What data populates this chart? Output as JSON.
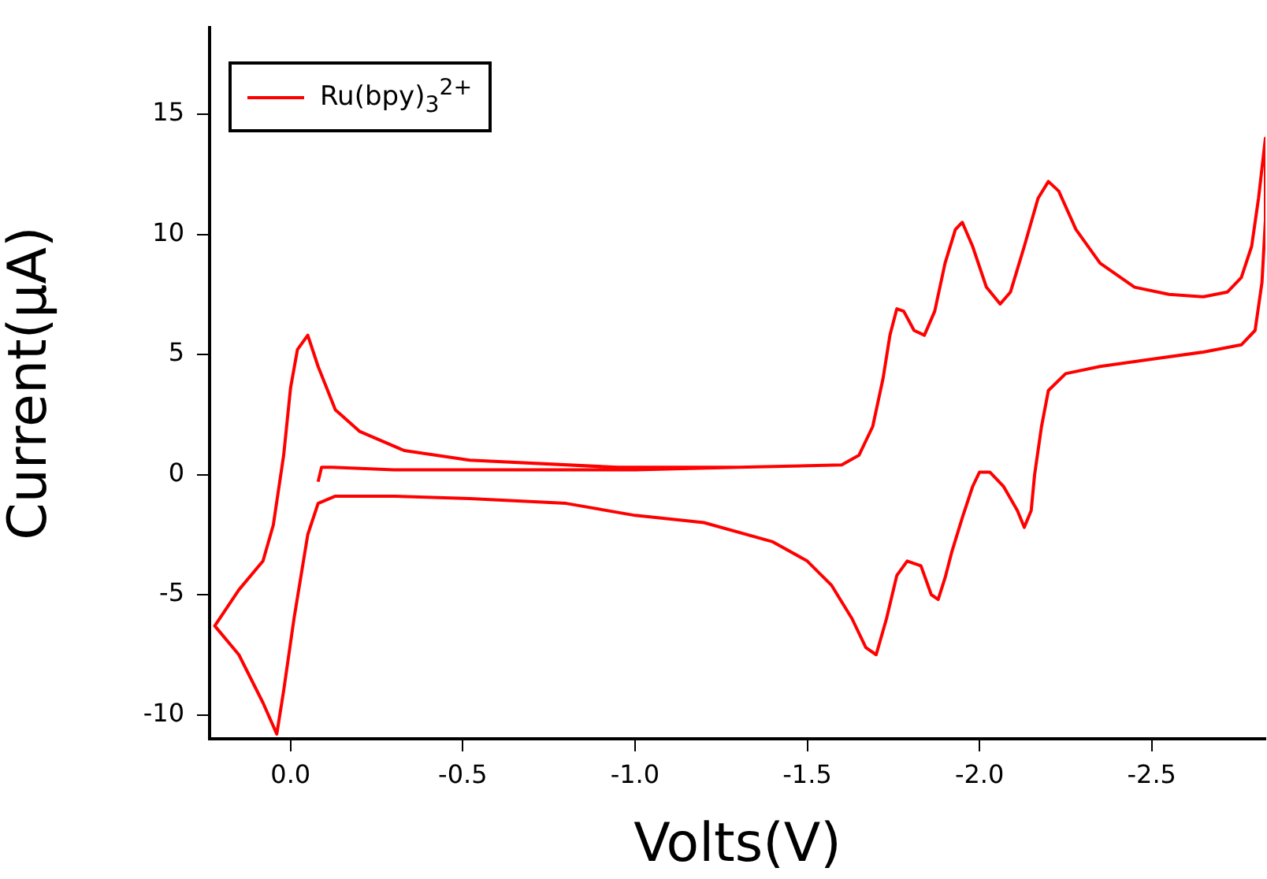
{
  "chart_data": {
    "type": "line",
    "xlabel": "Volts(V)",
    "ylabel": "Current(µA)",
    "legend": "top left",
    "grid": false,
    "marker": "none",
    "line_style": "solid",
    "xlim": [
      0.235,
      -2.83
    ],
    "ylim": [
      -11.0,
      18.6
    ],
    "xticks": [
      {
        "value": 0,
        "label": "0.0"
      },
      {
        "value": -0.5,
        "label": "-0.5"
      },
      {
        "value": -1,
        "label": "-1.0"
      },
      {
        "value": -1.5,
        "label": "-1.5"
      },
      {
        "value": -2,
        "label": "-2.0"
      },
      {
        "value": -2.5,
        "label": "-2.5"
      }
    ],
    "yticks": [
      -10,
      -5,
      0,
      5,
      10,
      15
    ],
    "series": [
      {
        "name": "Ru(bpy)$_{3}$$^{2+}$",
        "color": "#ff0000",
        "x": [
          -0.08,
          -0.09,
          -0.12,
          -0.3,
          -0.6,
          -1.0,
          -1.3,
          -1.6,
          -1.65,
          -1.69,
          -1.72,
          -1.74,
          -1.76,
          -1.78,
          -1.81,
          -1.84,
          -1.87,
          -1.9,
          -1.93,
          -1.95,
          -1.98,
          -2.02,
          -2.06,
          -2.09,
          -2.13,
          -2.17,
          -2.2,
          -2.23,
          -2.28,
          -2.35,
          -2.45,
          -2.55,
          -2.65,
          -2.72,
          -2.76,
          -2.79,
          -2.81,
          -2.83,
          -2.83,
          -2.82,
          -2.8,
          -2.76,
          -2.65,
          -2.5,
          -2.35,
          -2.25,
          -2.2,
          -2.18,
          -2.16,
          -2.15,
          -2.13,
          -2.11,
          -2.07,
          -2.03,
          -2.0,
          -1.98,
          -1.95,
          -1.92,
          -1.9,
          -1.88,
          -1.86,
          -1.83,
          -1.79,
          -1.76,
          -1.73,
          -1.7,
          -1.67,
          -1.63,
          -1.57,
          -1.5,
          -1.4,
          -1.2,
          -1.0,
          -0.8,
          -0.52,
          -0.3,
          -0.13,
          -0.08,
          -0.05,
          -0.01,
          0.02,
          0.04,
          0.08,
          0.15,
          0.22,
          0.15,
          0.08,
          0.05,
          0.02,
          0,
          -0.02,
          -0.05,
          -0.08,
          -0.13,
          -0.2,
          -0.33,
          -0.52,
          -0.95,
          -1.3,
          -1.6
        ],
        "values": [
          -0.3,
          0.3,
          0.3,
          0.2,
          0.2,
          0.2,
          0.3,
          0.4,
          0.8,
          2.0,
          4.0,
          5.8,
          6.9,
          6.8,
          6.0,
          5.8,
          6.8,
          8.8,
          10.2,
          10.5,
          9.5,
          7.8,
          7.1,
          7.6,
          9.5,
          11.5,
          12.2,
          11.8,
          10.2,
          8.8,
          7.8,
          7.5,
          7.4,
          7.6,
          8.2,
          9.5,
          11.5,
          14.0,
          10.6,
          8.0,
          6.0,
          5.4,
          5.1,
          4.8,
          4.5,
          4.2,
          3.5,
          2.0,
          0,
          -1.5,
          -2.2,
          -1.5,
          -0.5,
          0.1,
          0.1,
          -0.5,
          -1.8,
          -3.2,
          -4.3,
          -5.2,
          -5.0,
          -3.8,
          -3.6,
          -4.2,
          -6.0,
          -7.5,
          -7.2,
          -6.0,
          -4.6,
          -3.6,
          -2.8,
          -2.0,
          -1.7,
          -1.2,
          -1.0,
          -0.9,
          -0.9,
          -1.2,
          -2.5,
          -6.0,
          -9.0,
          -10.8,
          -9.5,
          -7.5,
          -6.3,
          -4.8,
          -3.6,
          -2.1,
          0.8,
          3.6,
          5.2,
          5.8,
          4.5,
          2.7,
          1.8,
          1.0,
          0.6,
          0.3,
          0.3,
          0.4
        ]
      }
    ]
  }
}
